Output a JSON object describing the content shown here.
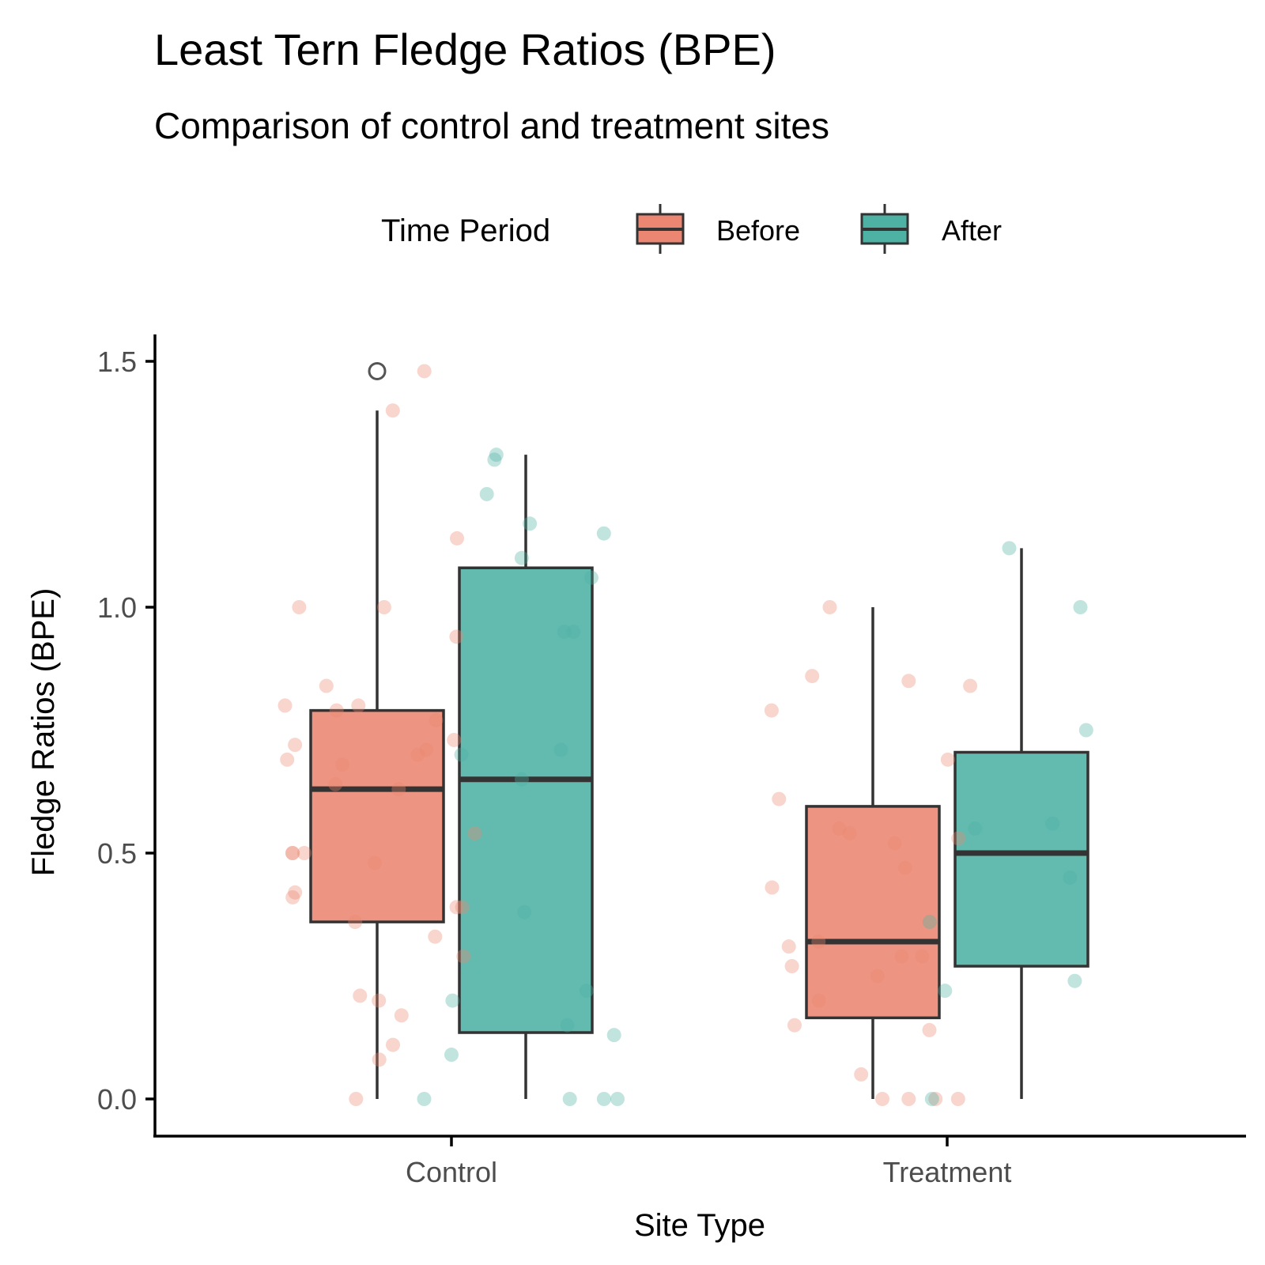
{
  "chart_data": {
    "type": "boxplot",
    "title": "Least Tern Fledge Ratios (BPE)",
    "subtitle": "Comparison of control and treatment sites",
    "xlabel": "Site Type",
    "ylabel": "Fledge Ratios (BPE)",
    "ylim": [
      -0.08,
      1.55
    ],
    "yticks": [
      0.0,
      0.5,
      1.0,
      1.5
    ],
    "ytick_labels": [
      "0.0",
      "0.5",
      "1.0",
      "1.5"
    ],
    "categories": [
      "Control",
      "Treatment"
    ],
    "grid": false,
    "legend": {
      "title": "Time Period",
      "position": "top",
      "entries": [
        "Before",
        "After"
      ]
    },
    "colors": {
      "Before": "#EA8671",
      "After": "#4DB2A4",
      "box_line": "#333333"
    },
    "series": [
      {
        "name": "Before",
        "boxes": [
          {
            "category": "Control",
            "whisker_low": 0.0,
            "q1": 0.36,
            "median": 0.63,
            "q3": 0.79,
            "whisker_high": 1.4,
            "outliers": [
              1.48
            ]
          },
          {
            "category": "Treatment",
            "whisker_low": 0.0,
            "q1": 0.165,
            "median": 0.32,
            "q3": 0.595,
            "whisker_high": 1.0,
            "outliers": []
          }
        ],
        "points": [
          {
            "category": "Control",
            "y": [
              1.48,
              1.4,
              1.14,
              1.0,
              1.0,
              0.94,
              0.84,
              0.8,
              0.8,
              0.79,
              0.77,
              0.73,
              0.72,
              0.71,
              0.7,
              0.69,
              0.68,
              0.64,
              0.63,
              0.54,
              0.5,
              0.5,
              0.5,
              0.48,
              0.42,
              0.41,
              0.39,
              0.39,
              0.36,
              0.33,
              0.29,
              0.21,
              0.2,
              0.17,
              0.11,
              0.08,
              0.0
            ]
          },
          {
            "category": "Treatment",
            "y": [
              1.0,
              0.86,
              0.85,
              0.84,
              0.79,
              0.69,
              0.61,
              0.55,
              0.54,
              0.53,
              0.52,
              0.47,
              0.43,
              0.32,
              0.31,
              0.29,
              0.29,
              0.27,
              0.25,
              0.2,
              0.15,
              0.14,
              0.05,
              0.0,
              0.0,
              0.0,
              0.0
            ]
          }
        ]
      },
      {
        "name": "After",
        "boxes": [
          {
            "category": "Control",
            "whisker_low": 0.0,
            "q1": 0.135,
            "median": 0.65,
            "q3": 1.08,
            "whisker_high": 1.31,
            "outliers": []
          },
          {
            "category": "Treatment",
            "whisker_low": 0.0,
            "q1": 0.27,
            "median": 0.5,
            "q3": 0.705,
            "whisker_high": 1.12,
            "outliers": []
          }
        ],
        "points": [
          {
            "category": "Control",
            "y": [
              1.31,
              1.3,
              1.23,
              1.17,
              1.15,
              1.1,
              1.06,
              0.95,
              0.95,
              0.71,
              0.7,
              0.65,
              0.38,
              0.22,
              0.2,
              0.15,
              0.13,
              0.09,
              0.0,
              0.0,
              0.0,
              0.0
            ]
          },
          {
            "category": "Treatment",
            "y": [
              1.12,
              1.0,
              0.75,
              0.56,
              0.55,
              0.45,
              0.36,
              0.24,
              0.22,
              0.0
            ]
          }
        ]
      }
    ]
  }
}
